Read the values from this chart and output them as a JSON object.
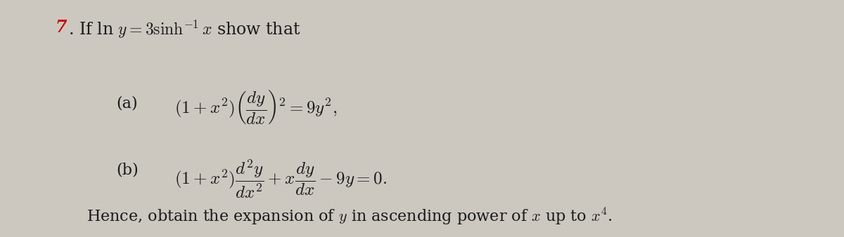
{
  "background_color": "#ccc8c0",
  "fig_width": 12.0,
  "fig_height": 3.38,
  "dpi": 100,
  "text_color": "#1a1a1a",
  "red_color": "#cc0000",
  "line1_num": "7",
  "line1_dot": ".",
  "line1_text": " If ln $y = 3\\sinh^{-1}x$ show that",
  "part_a_label": "(a)",
  "part_a_expr": "$(1 + x^2)\\left(\\dfrac{dy}{dx}\\right)^{\\!2} = 9y^2,$",
  "part_b_label": "(b)",
  "part_b_expr": "$(1 + x^2)\\dfrac{d^2y}{dx^2} + x\\dfrac{dy}{dx} - 9y = 0.$",
  "conclusion": "Hence, obtain the expansion of $y$ in ascending power of $x$ up to $x^4$.",
  "fs_main": 16,
  "fs_math": 18
}
